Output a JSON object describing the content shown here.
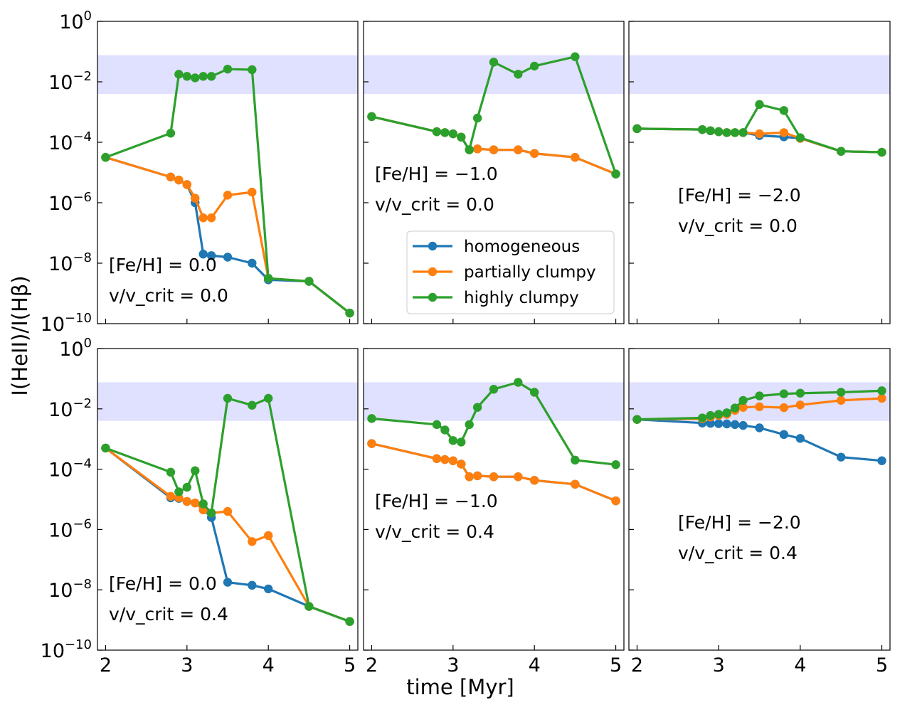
{
  "figure": {
    "ylabel": "I(HeII)/I(Hβ)",
    "xlabel": "time [Myr]",
    "x_ticks": [
      "2",
      "3",
      "4",
      "5"
    ],
    "y_ticks": [
      {
        "base": "10",
        "exp": "0"
      },
      {
        "base": "10",
        "exp": "−2"
      },
      {
        "base": "10",
        "exp": "−4"
      },
      {
        "base": "10",
        "exp": "−6"
      },
      {
        "base": "10",
        "exp": "−8"
      },
      {
        "base": "10",
        "exp": "−10"
      }
    ]
  },
  "legend": [
    {
      "label": "homogeneous",
      "color": "#1f77b4"
    },
    {
      "label": "partially clumpy",
      "color": "#ff7f0e"
    },
    {
      "label": "highly clumpy",
      "color": "#2ca02c"
    }
  ],
  "chart_data": {
    "type": "line",
    "x_axis": {
      "label": "time [Myr]",
      "range": [
        1.9,
        5.1
      ],
      "ticks": [
        2,
        3,
        4,
        5
      ]
    },
    "y_axis": {
      "label": "I(HeII)/I(Hβ)",
      "scale": "log",
      "range_log10": [
        -10,
        0
      ]
    },
    "shaded_band_log10": [
      -2.4,
      -1.12
    ],
    "panels": [
      {
        "feh_label": "[Fe/H] = 0.0",
        "vel_label": "v/v_crit = 0.0",
        "ann_lines": [
          "[Fe/H] = 0.0",
          "v/v_crit = 0.0"
        ],
        "series": [
          {
            "name": "homogeneous",
            "x": [
              2,
              2.8,
              2.9,
              3.0,
              3.1,
              3.2,
              3.3,
              3.5,
              3.8,
              4.0,
              4.5,
              5.0
            ],
            "log10_y": [
              -4.5,
              -5.15,
              -5.25,
              -5.4,
              -6.0,
              -7.7,
              -7.75,
              -7.8,
              -8.0,
              -8.55,
              -8.6,
              -9.65
            ]
          },
          {
            "name": "partially clumpy",
            "x": [
              2,
              2.8,
              2.9,
              3.0,
              3.1,
              3.2,
              3.3,
              3.5,
              3.8,
              4.0,
              4.5,
              5.0
            ],
            "log10_y": [
              -4.5,
              -5.15,
              -5.25,
              -5.4,
              -5.85,
              -6.5,
              -6.5,
              -5.75,
              -5.65,
              -8.5,
              -8.6,
              -9.65
            ]
          },
          {
            "name": "highly clumpy",
            "x": [
              2,
              2.8,
              2.9,
              3.0,
              3.1,
              3.2,
              3.3,
              3.5,
              3.8,
              4.0,
              4.5,
              5.0
            ],
            "log10_y": [
              -4.5,
              -3.7,
              -1.75,
              -1.82,
              -1.87,
              -1.82,
              -1.82,
              -1.58,
              -1.6,
              -8.5,
              -8.6,
              -9.65
            ]
          }
        ]
      },
      {
        "feh_label": "[Fe/H] = −1.0",
        "vel_label": "v/v_crit = 0.0",
        "ann_lines": [
          "[Fe/H] = −1.0",
          "v/v_crit = 0.0"
        ],
        "series": [
          {
            "name": "homogeneous",
            "x": [
              2,
              2.8,
              2.9,
              3.0,
              3.1,
              3.2,
              3.3,
              3.5,
              3.8,
              4.0,
              4.5,
              5.0
            ],
            "log10_y": [
              -3.15,
              -3.65,
              -3.68,
              -3.72,
              -3.83,
              -4.25,
              -4.22,
              -4.25,
              -4.25,
              -4.37,
              -4.5,
              -5.05
            ]
          },
          {
            "name": "partially clumpy",
            "x": [
              2,
              2.8,
              2.9,
              3.0,
              3.1,
              3.2,
              3.3,
              3.5,
              3.8,
              4.0,
              4.5,
              5.0
            ],
            "log10_y": [
              -3.15,
              -3.65,
              -3.68,
              -3.72,
              -3.83,
              -4.25,
              -4.22,
              -4.25,
              -4.25,
              -4.37,
              -4.5,
              -5.05
            ]
          },
          {
            "name": "highly clumpy",
            "x": [
              2,
              2.8,
              2.9,
              3.0,
              3.1,
              3.2,
              3.3,
              3.5,
              3.8,
              4.0,
              4.5,
              5.0
            ],
            "log10_y": [
              -3.15,
              -3.65,
              -3.68,
              -3.72,
              -3.83,
              -4.25,
              -3.2,
              -1.35,
              -1.75,
              -1.48,
              -1.17,
              -5.05
            ]
          }
        ]
      },
      {
        "feh_label": "[Fe/H] = −2.0",
        "vel_label": "v/v_crit = 0.0",
        "ann_lines": [
          "[Fe/H] = −2.0",
          "v/v_crit = 0.0"
        ],
        "series": [
          {
            "name": "homogeneous",
            "x": [
              2,
              2.8,
              2.9,
              3.0,
              3.1,
              3.2,
              3.3,
              3.5,
              3.8,
              4.0,
              4.5,
              5.0
            ],
            "log10_y": [
              -3.55,
              -3.58,
              -3.62,
              -3.65,
              -3.68,
              -3.68,
              -3.68,
              -3.78,
              -3.82,
              -3.87,
              -4.3,
              -4.33
            ]
          },
          {
            "name": "partially clumpy",
            "x": [
              2,
              2.8,
              2.9,
              3.0,
              3.1,
              3.2,
              3.3,
              3.5,
              3.8,
              4.0,
              4.5,
              5.0
            ],
            "log10_y": [
              -3.55,
              -3.58,
              -3.62,
              -3.65,
              -3.68,
              -3.68,
              -3.68,
              -3.72,
              -3.68,
              -3.87,
              -4.3,
              -4.33
            ]
          },
          {
            "name": "highly clumpy",
            "x": [
              2,
              2.8,
              2.9,
              3.0,
              3.1,
              3.2,
              3.3,
              3.5,
              3.8,
              4.0,
              4.5,
              5.0
            ],
            "log10_y": [
              -3.55,
              -3.58,
              -3.62,
              -3.65,
              -3.68,
              -3.68,
              -3.68,
              -2.75,
              -2.95,
              -3.85,
              -4.3,
              -4.33
            ]
          }
        ]
      },
      {
        "feh_label": "[Fe/H] = 0.0",
        "vel_label": "v/v_crit = 0.4",
        "ann_lines": [
          "[Fe/H] = 0.0",
          "v/v_crit = 0.4"
        ],
        "series": [
          {
            "name": "homogeneous",
            "x": [
              2,
              2.8,
              2.9,
              3.0,
              3.1,
              3.2,
              3.3,
              3.5,
              3.8,
              4.0,
              4.5,
              5.0
            ],
            "log10_y": [
              -3.3,
              -4.95,
              -4.97,
              -5.07,
              -5.12,
              -5.33,
              -5.6,
              -7.75,
              -7.85,
              -7.97,
              -8.55,
              -9.05
            ]
          },
          {
            "name": "partially clumpy",
            "x": [
              2,
              2.8,
              2.9,
              3.0,
              3.1,
              3.2,
              3.3,
              3.5,
              3.8,
              4.0,
              4.5,
              5.0
            ],
            "log10_y": [
              -3.3,
              -4.9,
              -4.95,
              -5.07,
              -5.12,
              -5.35,
              -5.45,
              -5.4,
              -6.4,
              -6.2,
              -8.55,
              -9.05
            ]
          },
          {
            "name": "highly clumpy",
            "x": [
              2,
              2.8,
              2.9,
              3.0,
              3.1,
              3.2,
              3.3,
              3.5,
              3.8,
              4.0,
              4.5,
              5.0
            ],
            "log10_y": [
              -3.3,
              -4.1,
              -4.75,
              -4.6,
              -4.05,
              -5.15,
              -5.45,
              -1.65,
              -1.88,
              -1.65,
              -8.55,
              -9.05
            ]
          }
        ]
      },
      {
        "feh_label": "[Fe/H] = −1.0",
        "vel_label": "v/v_crit = 0.4",
        "ann_lines": [
          "[Fe/H] = −1.0",
          "v/v_crit = 0.4"
        ],
        "series": [
          {
            "name": "homogeneous",
            "x": [
              2,
              2.8,
              2.9,
              3.0,
              3.1,
              3.2,
              3.3,
              3.5,
              3.8,
              4.0,
              4.5,
              5.0
            ],
            "log10_y": [
              -3.15,
              -3.65,
              -3.68,
              -3.72,
              -3.83,
              -4.25,
              -4.22,
              -4.25,
              -4.25,
              -4.37,
              -4.5,
              -5.05
            ]
          },
          {
            "name": "partially clumpy",
            "x": [
              2,
              2.8,
              2.9,
              3.0,
              3.1,
              3.2,
              3.3,
              3.5,
              3.8,
              4.0,
              4.5,
              5.0
            ],
            "log10_y": [
              -3.15,
              -3.65,
              -3.68,
              -3.72,
              -3.83,
              -4.25,
              -4.22,
              -4.25,
              -4.25,
              -4.37,
              -4.5,
              -5.05
            ]
          },
          {
            "name": "highly clumpy",
            "x": [
              2,
              2.8,
              2.9,
              3.0,
              3.1,
              3.2,
              3.3,
              3.5,
              3.8,
              4.0,
              4.5,
              5.0
            ],
            "log10_y": [
              -2.32,
              -2.52,
              -2.7,
              -3.05,
              -3.1,
              -2.52,
              -1.95,
              -1.35,
              -1.12,
              -1.45,
              -3.7,
              -3.85
            ]
          }
        ]
      },
      {
        "feh_label": "[Fe/H] = −2.0",
        "vel_label": "v/v_crit = 0.4",
        "ann_lines": [
          "[Fe/H] = −2.0",
          "v/v_crit = 0.4"
        ],
        "series": [
          {
            "name": "homogeneous",
            "x": [
              2,
              2.8,
              2.9,
              3.0,
              3.1,
              3.2,
              3.3,
              3.5,
              3.8,
              4.0,
              4.5,
              5.0
            ],
            "log10_y": [
              -2.35,
              -2.47,
              -2.48,
              -2.49,
              -2.5,
              -2.52,
              -2.55,
              -2.63,
              -2.85,
              -2.98,
              -3.6,
              -3.72
            ]
          },
          {
            "name": "partially clumpy",
            "x": [
              2,
              2.8,
              2.9,
              3.0,
              3.1,
              3.2,
              3.3,
              3.5,
              3.8,
              4.0,
              4.5,
              5.0
            ],
            "log10_y": [
              -2.35,
              -2.33,
              -2.27,
              -2.22,
              -2.18,
              -2.05,
              -1.95,
              -1.93,
              -1.96,
              -1.87,
              -1.72,
              -1.65
            ]
          },
          {
            "name": "highly clumpy",
            "x": [
              2,
              2.8,
              2.9,
              3.0,
              3.1,
              3.2,
              3.3,
              3.5,
              3.8,
              4.0,
              4.5,
              5.0
            ],
            "log10_y": [
              -2.35,
              -2.3,
              -2.22,
              -2.18,
              -2.13,
              -1.97,
              -1.72,
              -1.57,
              -1.5,
              -1.48,
              -1.45,
              -1.4
            ]
          }
        ]
      }
    ]
  }
}
